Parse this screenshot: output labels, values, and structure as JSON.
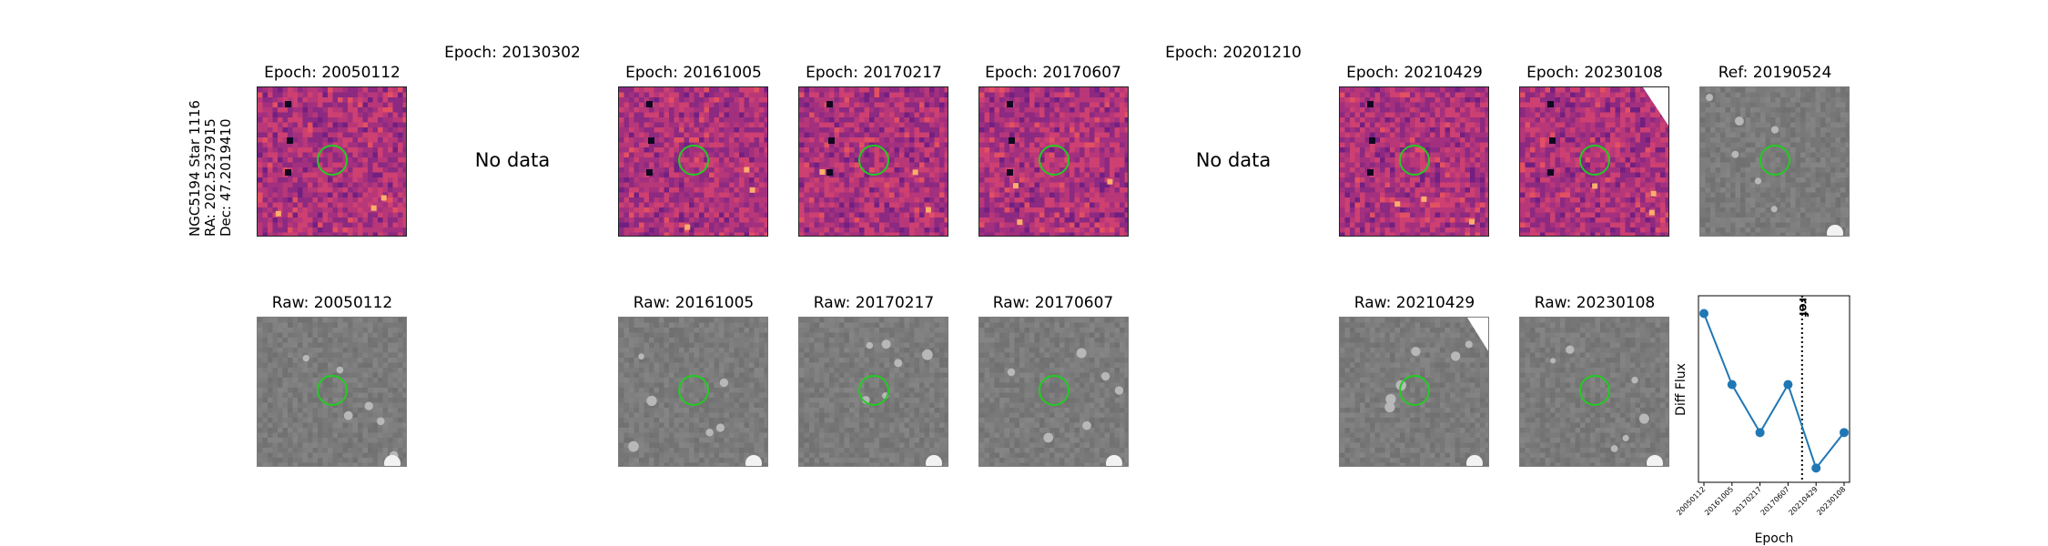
{
  "star": {
    "name": "NGC5194 Star 1116",
    "ra": "RA: 202.5237915",
    "dec": "Dec: 47.2019410"
  },
  "epochs": [
    {
      "date": "20050112",
      "diff_title": "Epoch: 20050112",
      "raw_title": "Raw: 20050112",
      "has_data": true
    },
    {
      "date": "20130302",
      "diff_title": "Epoch: 20130302",
      "raw_title": "",
      "has_data": false,
      "no_data_text": "No data"
    },
    {
      "date": "20161005",
      "diff_title": "Epoch: 20161005",
      "raw_title": "Raw: 20161005",
      "has_data": true
    },
    {
      "date": "20170217",
      "diff_title": "Epoch: 20170217",
      "raw_title": "Raw: 20170217",
      "has_data": true
    },
    {
      "date": "20170607",
      "diff_title": "Epoch: 20170607",
      "raw_title": "Raw: 20170607",
      "has_data": true
    },
    {
      "date": "20201210",
      "diff_title": "Epoch: 20201210",
      "raw_title": "",
      "has_data": false,
      "no_data_text": "No data"
    },
    {
      "date": "20210429",
      "diff_title": "Epoch: 20210429",
      "raw_title": "Raw: 20210429",
      "has_data": true
    },
    {
      "date": "20230108",
      "diff_title": "Epoch: 20230108",
      "raw_title": "Raw: 20230108",
      "has_data": true
    }
  ],
  "reference": {
    "title": "Ref: 20190524"
  },
  "colors": {
    "diff_map": "magma",
    "marker_circle": "#22cc22",
    "line": "#1f77b4"
  },
  "chart_data": {
    "type": "line",
    "x": [
      "20050112",
      "20161005",
      "20170217",
      "20170607",
      "20210429",
      "20230108"
    ],
    "series": [
      {
        "values": [
          1.0,
          0.6,
          0.33,
          0.6,
          0.13,
          0.33
        ]
      }
    ],
    "xlabel": "Epoch",
    "ylabel": "Diff Flux",
    "ylim": [
      0.05,
      1.1
    ],
    "reference_line": {
      "label": "ref",
      "date": "20190524"
    },
    "grid": false
  }
}
